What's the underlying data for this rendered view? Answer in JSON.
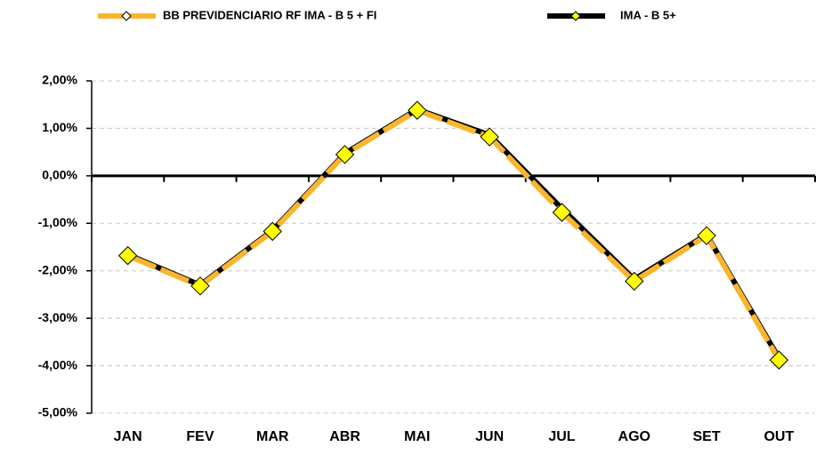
{
  "chart_data": {
    "type": "line",
    "categories": [
      "JAN",
      "FEV",
      "MAR",
      "ABR",
      "MAI",
      "JUN",
      "JUL",
      "AGO",
      "SET",
      "OUT"
    ],
    "series": [
      {
        "name": "BB PREVIDENCIARIO RF IMA - B 5 + FI",
        "color": "#f9b52d",
        "marker_color": "#ffff00",
        "values": [
          -1.68,
          -2.32,
          -1.17,
          0.45,
          1.38,
          0.82,
          -0.77,
          -2.22,
          -1.26,
          -3.88
        ]
      },
      {
        "name": "IMA - B 5+",
        "color": "#000000",
        "marker_color": "#ffff00",
        "values": [
          -1.66,
          -2.3,
          -1.15,
          0.47,
          1.4,
          0.86,
          -0.69,
          -2.18,
          -1.24,
          -3.84
        ]
      }
    ],
    "ylim": [
      -5,
      2
    ],
    "yticks": [
      {
        "value": -5,
        "label": "-5,00%"
      },
      {
        "value": -4,
        "label": "-4,00%"
      },
      {
        "value": -3,
        "label": "-3,00%"
      },
      {
        "value": -2,
        "label": "-2,00%"
      },
      {
        "value": -1,
        "label": "-1,00%"
      },
      {
        "value": 0,
        "label": "0,00%"
      },
      {
        "value": 1,
        "label": "1,00%"
      },
      {
        "value": 2,
        "label": "2,00%"
      }
    ],
    "grid": true,
    "legend": "top"
  }
}
